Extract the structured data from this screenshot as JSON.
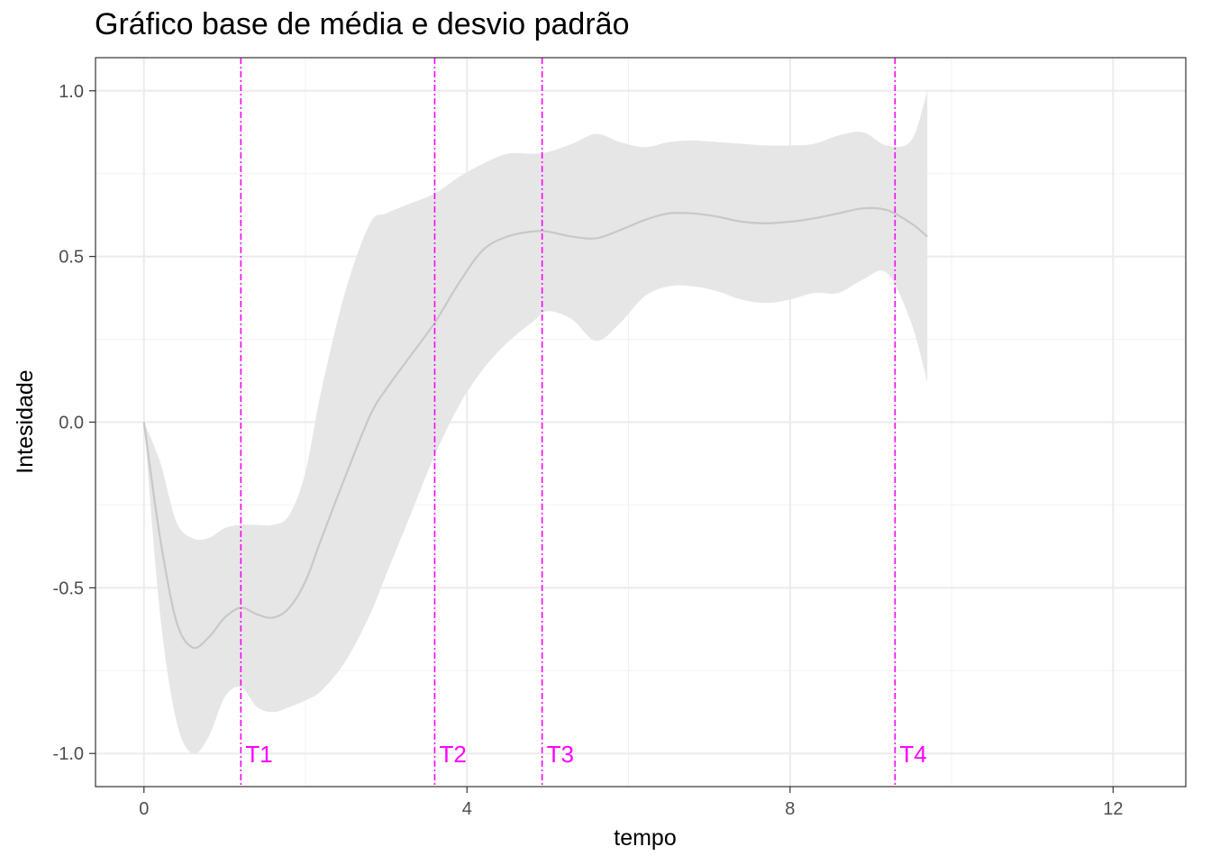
{
  "chart_data": {
    "type": "line",
    "title": "Gráfico base de média e desvio padrão",
    "xlabel": "tempo",
    "ylabel": "Intesidade",
    "xlim": [
      -0.6,
      12.9
    ],
    "ylim": [
      -1.1,
      1.1
    ],
    "x_ticks": [
      0,
      4,
      8,
      12
    ],
    "x_tick_labels": [
      "0",
      "4",
      "8",
      "12"
    ],
    "y_ticks": [
      -1.0,
      -0.5,
      0.0,
      0.5,
      1.0
    ],
    "y_tick_labels": [
      "-1.0",
      "-0.5",
      "0.0",
      "0.5",
      "1.0"
    ],
    "grid": true,
    "colors": {
      "line": "#c8c8c8",
      "band": "#e6e6e6",
      "markers": "#ff00ff",
      "panel_border": "#333333",
      "grid": "#ebebeb"
    },
    "series": [
      {
        "x": [
          0,
          0.2,
          0.4,
          0.6,
          0.8,
          1.0,
          1.2,
          1.4,
          1.6,
          1.8,
          2.0,
          2.2,
          2.5,
          2.8,
          3.0,
          3.3,
          3.6,
          3.9,
          4.2,
          4.5,
          4.8,
          5.0,
          5.3,
          5.6,
          5.9,
          6.2,
          6.5,
          6.8,
          7.1,
          7.4,
          7.7,
          8.0,
          8.3,
          8.6,
          8.9,
          9.2,
          9.5,
          9.7
        ],
        "mean": [
          0,
          -0.35,
          -0.6,
          -0.68,
          -0.65,
          -0.59,
          -0.56,
          -0.58,
          -0.59,
          -0.56,
          -0.48,
          -0.35,
          -0.16,
          0.02,
          0.1,
          0.2,
          0.3,
          0.42,
          0.52,
          0.56,
          0.575,
          0.575,
          0.56,
          0.555,
          0.58,
          0.61,
          0.63,
          0.63,
          0.62,
          0.605,
          0.6,
          0.605,
          0.615,
          0.63,
          0.645,
          0.64,
          0.6,
          0.56
        ],
        "upper": [
          0,
          -0.12,
          -0.3,
          -0.35,
          -0.35,
          -0.32,
          -0.31,
          -0.31,
          -0.31,
          -0.28,
          -0.15,
          0.1,
          0.4,
          0.6,
          0.63,
          0.66,
          0.69,
          0.74,
          0.78,
          0.81,
          0.81,
          0.815,
          0.84,
          0.87,
          0.845,
          0.83,
          0.845,
          0.85,
          0.845,
          0.84,
          0.835,
          0.835,
          0.84,
          0.865,
          0.875,
          0.835,
          0.85,
          1.0
        ],
        "lower": [
          0,
          -0.58,
          -0.9,
          -1.0,
          -0.95,
          -0.83,
          -0.8,
          -0.86,
          -0.875,
          -0.86,
          -0.84,
          -0.81,
          -0.72,
          -0.58,
          -0.46,
          -0.28,
          -0.1,
          0.05,
          0.16,
          0.24,
          0.3,
          0.335,
          0.31,
          0.245,
          0.3,
          0.38,
          0.41,
          0.41,
          0.395,
          0.37,
          0.36,
          0.37,
          0.39,
          0.39,
          0.43,
          0.45,
          0.3,
          0.12
        ]
      }
    ],
    "vlines": [
      {
        "x": 1.2,
        "label": "T1"
      },
      {
        "x": 3.6,
        "label": "T2"
      },
      {
        "x": 4.93,
        "label": "T3"
      },
      {
        "x": 9.3,
        "label": "T4"
      }
    ]
  }
}
